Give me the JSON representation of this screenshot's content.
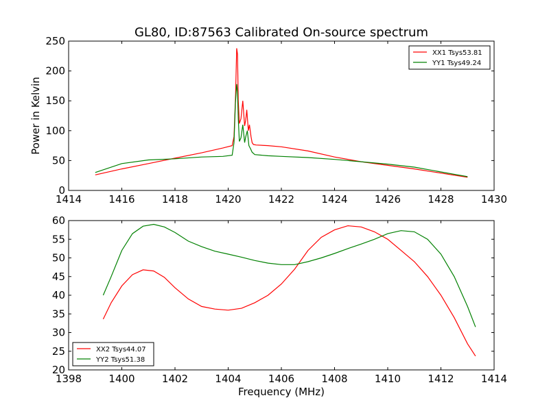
{
  "title": "GL80, ID:87563 Calibrated On-source spectrum",
  "colors": {
    "red": "#ff0000",
    "green": "#008000"
  },
  "chart_data": [
    {
      "type": "line",
      "xlim": [
        1414,
        1430
      ],
      "ylim": [
        0,
        250
      ],
      "xticks": [
        "1414",
        "1416",
        "1418",
        "1420",
        "1422",
        "1424",
        "1426",
        "1428",
        "1430"
      ],
      "yticks": [
        "0",
        "50",
        "100",
        "150",
        "200",
        "250"
      ],
      "xlabel": "",
      "ylabel": "Power in Kelvin",
      "legend_position": "top-right",
      "series": [
        {
          "name": "XX1 Tsys53.81",
          "color": "#ff0000",
          "x": [
            1415.0,
            1416.0,
            1417.0,
            1418.0,
            1419.0,
            1419.8,
            1420.15,
            1420.22,
            1420.28,
            1420.32,
            1420.35,
            1420.38,
            1420.42,
            1420.48,
            1420.55,
            1420.62,
            1420.66,
            1420.7,
            1420.76,
            1420.8,
            1420.86,
            1420.9,
            1420.95,
            1421.05,
            1421.5,
            1422.0,
            1423.0,
            1424.0,
            1425.0,
            1426.0,
            1427.0,
            1428.0,
            1429.0
          ],
          "y": [
            26,
            36,
            45,
            54,
            63,
            71,
            75,
            90,
            160,
            238,
            228,
            150,
            112,
            120,
            150,
            108,
            118,
            135,
            100,
            110,
            90,
            80,
            77,
            76,
            75,
            73,
            66,
            56,
            48,
            42,
            36,
            29,
            22
          ]
        },
        {
          "name": "YY1 Tsys49.24",
          "color": "#008000",
          "x": [
            1415.0,
            1416.0,
            1417.0,
            1418.0,
            1419.0,
            1419.8,
            1420.15,
            1420.22,
            1420.27,
            1420.32,
            1420.35,
            1420.38,
            1420.42,
            1420.48,
            1420.55,
            1420.62,
            1420.66,
            1420.72,
            1420.78,
            1420.84,
            1420.9,
            1421.0,
            1421.5,
            1422.0,
            1423.0,
            1424.0,
            1425.0,
            1426.0,
            1427.0,
            1428.0,
            1429.0
          ],
          "y": [
            30,
            45,
            51,
            53,
            56,
            57,
            59,
            80,
            145,
            178,
            165,
            120,
            82,
            88,
            110,
            80,
            90,
            100,
            75,
            70,
            64,
            60,
            58,
            57,
            55,
            52,
            48,
            44,
            39,
            31,
            23
          ]
        }
      ]
    },
    {
      "type": "line",
      "xlim": [
        1398,
        1414
      ],
      "ylim": [
        20,
        60
      ],
      "xticks": [
        "1398",
        "1400",
        "1402",
        "1404",
        "1406",
        "1408",
        "1410",
        "1412",
        "1414"
      ],
      "yticks": [
        "20",
        "25",
        "30",
        "35",
        "40",
        "45",
        "50",
        "55",
        "60"
      ],
      "xlabel": "Frequency (MHz)",
      "ylabel": "",
      "legend_position": "bottom-left",
      "series": [
        {
          "name": "XX2 Tsys44.07",
          "color": "#ff0000",
          "x": [
            1399.3,
            1399.6,
            1400.0,
            1400.4,
            1400.8,
            1401.2,
            1401.6,
            1402.0,
            1402.5,
            1403.0,
            1403.5,
            1404.0,
            1404.5,
            1405.0,
            1405.5,
            1406.0,
            1406.5,
            1407.0,
            1407.5,
            1408.0,
            1408.5,
            1409.0,
            1409.5,
            1410.0,
            1410.5,
            1411.0,
            1411.5,
            1412.0,
            1412.5,
            1413.0,
            1413.3
          ],
          "y": [
            33.6,
            38,
            42.5,
            45.5,
            46.8,
            46.5,
            44.8,
            42,
            39,
            37,
            36.3,
            36,
            36.5,
            38,
            40,
            43,
            47,
            52,
            55.5,
            57.5,
            58.6,
            58.3,
            57,
            55,
            52,
            49,
            45,
            40,
            34,
            27,
            23.7
          ]
        },
        {
          "name": "YY2 Tsys51.38",
          "color": "#008000",
          "x": [
            1399.3,
            1399.6,
            1400.0,
            1400.4,
            1400.8,
            1401.2,
            1401.6,
            1402.0,
            1402.5,
            1403.0,
            1403.5,
            1404.0,
            1404.5,
            1405.0,
            1405.5,
            1406.0,
            1406.5,
            1407.0,
            1407.5,
            1408.0,
            1408.5,
            1409.0,
            1409.5,
            1410.0,
            1410.5,
            1411.0,
            1411.5,
            1412.0,
            1412.5,
            1413.0,
            1413.3
          ],
          "y": [
            40,
            45,
            52,
            56.5,
            58.5,
            59,
            58.3,
            56.8,
            54.5,
            53,
            51.8,
            51,
            50.2,
            49.3,
            48.6,
            48.2,
            48.2,
            49,
            50,
            51.2,
            52.5,
            53.7,
            55,
            56.5,
            57.3,
            57,
            55,
            51,
            45,
            37,
            31.5
          ]
        }
      ]
    }
  ]
}
